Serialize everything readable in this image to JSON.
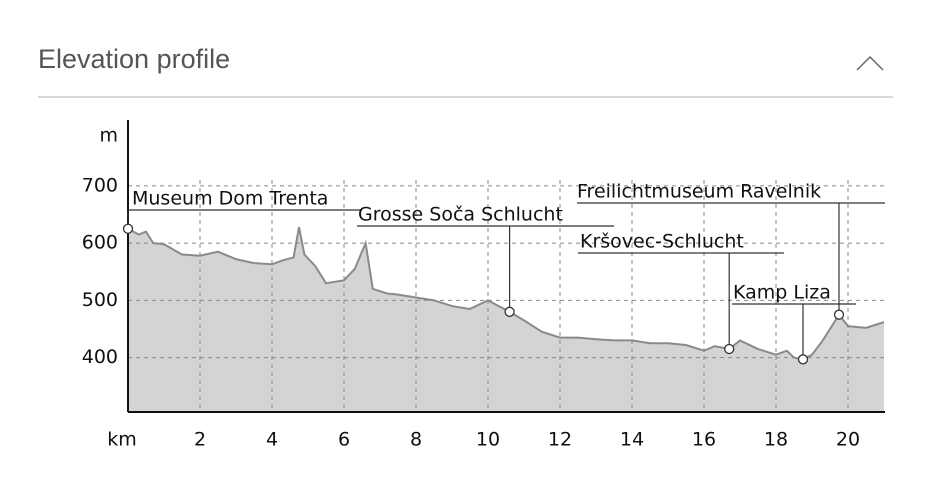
{
  "header": {
    "title": "Elevation profile"
  },
  "chart_data": {
    "type": "area",
    "x_label": "km",
    "y_label": "m",
    "x": [
      0,
      0.3,
      0.5,
      0.7,
      1.0,
      1.5,
      2.0,
      2.5,
      3.0,
      3.5,
      4.0,
      4.3,
      4.6,
      4.75,
      4.9,
      5.2,
      5.5,
      6.0,
      6.3,
      6.6,
      6.8,
      7.2,
      7.5,
      8.0,
      8.5,
      9.0,
      9.5,
      10.0,
      10.3,
      10.6,
      11.0,
      11.5,
      12.0,
      12.5,
      13.0,
      13.5,
      14.0,
      14.5,
      15.0,
      15.5,
      16.0,
      16.3,
      16.7,
      17.0,
      17.5,
      18.0,
      18.3,
      18.5,
      18.75,
      19.0,
      19.3,
      19.6,
      19.75,
      20.0,
      20.5,
      21.0
    ],
    "values": [
      625,
      615,
      620,
      600,
      598,
      580,
      578,
      585,
      572,
      565,
      563,
      570,
      575,
      628,
      580,
      560,
      530,
      535,
      555,
      600,
      520,
      512,
      510,
      505,
      500,
      490,
      485,
      500,
      490,
      480,
      465,
      445,
      435,
      435,
      432,
      430,
      430,
      425,
      425,
      422,
      412,
      420,
      415,
      430,
      415,
      405,
      412,
      400,
      397,
      405,
      430,
      460,
      475,
      455,
      452,
      462
    ],
    "color": "#d4d4d4",
    "line_color": "#8a8a8a",
    "xlim": [
      0,
      21
    ],
    "ylim": [
      305,
      815
    ],
    "xticks": [
      2,
      4,
      6,
      8,
      10,
      12,
      14,
      16,
      18,
      20
    ],
    "yticks": [
      400,
      500,
      600,
      700
    ],
    "grid": true,
    "annotations": [
      {
        "label": "Museum Dom Trenta",
        "x": 0,
        "y": 625
      },
      {
        "label": "Grosse Soča Schlucht",
        "x": 10.6,
        "y": 480
      },
      {
        "label": "Kršovec-Schlucht",
        "x": 16.7,
        "y": 415
      },
      {
        "label": "Kamp Liza",
        "x": 18.75,
        "y": 397
      },
      {
        "label": "Freilichtmuseum Ravelnik",
        "x": 19.75,
        "y": 475
      }
    ]
  }
}
